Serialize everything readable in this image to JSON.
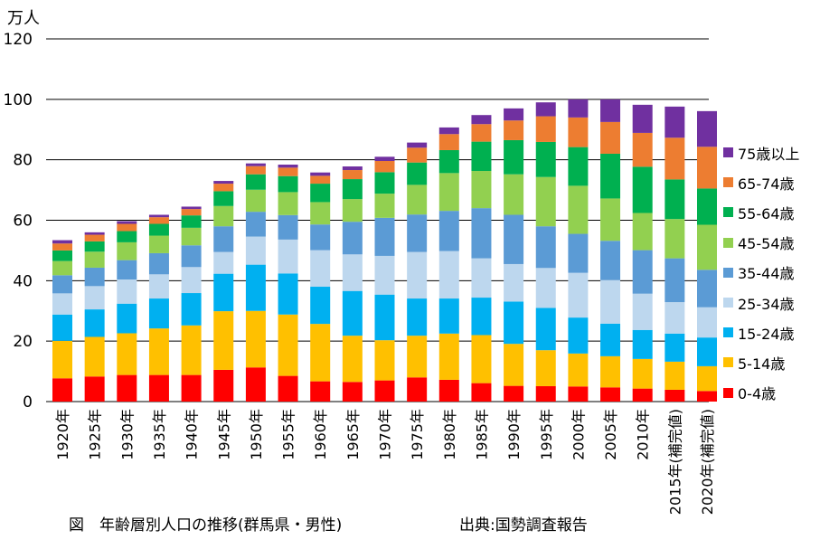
{
  "unit_label": "万人",
  "caption": "図　年齢層別人口の推移(群馬県・男性)",
  "source": "出典:国勢調査報告",
  "chart_data": {
    "type": "bar",
    "stacked": true,
    "categories": [
      "1920年",
      "1925年",
      "1930年",
      "1935年",
      "1940年",
      "1945年",
      "1950年",
      "1955年",
      "1960年",
      "1965年",
      "1970年",
      "1975年",
      "1980年",
      "1985年",
      "1990年",
      "1995年",
      "2000年",
      "2005年",
      "2010年",
      "2015年(補完値)",
      "2020年(補完値)"
    ],
    "ylim": [
      0,
      120
    ],
    "yticks": [
      0,
      20,
      40,
      60,
      80,
      100,
      120
    ],
    "grid": true,
    "legend_position": "right",
    "series": [
      {
        "name": "0-4歳",
        "color": "#ff0000",
        "values": [
          7.7,
          8.3,
          8.8,
          8.8,
          8.8,
          10.5,
          11.3,
          8.5,
          6.7,
          6.5,
          7.0,
          8.0,
          7.2,
          6.1,
          5.2,
          5.1,
          5.0,
          4.7,
          4.3,
          3.9,
          3.5
        ]
      },
      {
        "name": "5-14歳",
        "color": "#ffc000",
        "values": [
          12.4,
          13.1,
          13.8,
          15.4,
          16.4,
          19.4,
          18.7,
          20.3,
          19.0,
          15.3,
          13.3,
          13.8,
          15.3,
          15.9,
          13.9,
          11.9,
          10.9,
          10.3,
          9.8,
          9.3,
          8.2
        ]
      },
      {
        "name": "15-24歳",
        "color": "#00b0f0",
        "values": [
          8.7,
          9.1,
          9.8,
          9.9,
          10.7,
          12.4,
          15.3,
          13.6,
          12.3,
          14.8,
          15.1,
          12.3,
          11.6,
          12.4,
          14.0,
          14.0,
          11.9,
          10.8,
          9.6,
          9.3,
          9.5
        ]
      },
      {
        "name": "25-34歳",
        "color": "#bdd7ee",
        "values": [
          7.0,
          7.7,
          8.0,
          8.0,
          8.6,
          7.2,
          9.3,
          11.2,
          12.1,
          12.1,
          12.8,
          15.4,
          15.7,
          13.0,
          12.4,
          13.2,
          14.8,
          14.4,
          12.0,
          10.4,
          10.0
        ]
      },
      {
        "name": "35-44歳",
        "color": "#5b9bd5",
        "values": [
          6.0,
          6.1,
          6.4,
          7.0,
          7.2,
          8.5,
          8.2,
          8.1,
          8.5,
          10.8,
          12.6,
          12.4,
          13.3,
          16.6,
          16.3,
          13.8,
          12.9,
          13.0,
          14.4,
          14.5,
          12.4
        ]
      },
      {
        "name": "45-54歳",
        "color": "#92d050",
        "values": [
          4.7,
          5.3,
          5.9,
          5.8,
          5.8,
          6.7,
          7.3,
          7.6,
          7.4,
          7.5,
          8.0,
          9.8,
          12.5,
          12.3,
          13.4,
          16.3,
          15.9,
          14.0,
          12.3,
          13.0,
          14.9
        ]
      },
      {
        "name": "55-64歳",
        "color": "#00b050",
        "values": [
          3.5,
          3.4,
          3.7,
          3.9,
          4.1,
          4.9,
          5.1,
          5.3,
          6.1,
          6.6,
          7.1,
          7.4,
          7.6,
          9.7,
          11.3,
          11.6,
          12.8,
          14.8,
          15.3,
          13.1,
          12.0
        ]
      },
      {
        "name": "65-74歳",
        "color": "#ed7d31",
        "values": [
          2.3,
          2.2,
          2.4,
          2.2,
          2.1,
          2.5,
          2.7,
          2.8,
          2.6,
          3.0,
          3.7,
          4.9,
          5.3,
          5.8,
          6.5,
          8.5,
          9.8,
          10.5,
          11.2,
          13.8,
          13.8
        ]
      },
      {
        "name": "75歳以上",
        "color": "#7030a0",
        "values": [
          1.1,
          0.8,
          0.9,
          0.8,
          0.8,
          0.9,
          0.9,
          1.0,
          1.1,
          1.2,
          1.4,
          1.7,
          2.2,
          3.0,
          4.0,
          4.6,
          6.0,
          7.5,
          9.3,
          10.3,
          11.8
        ]
      }
    ]
  }
}
